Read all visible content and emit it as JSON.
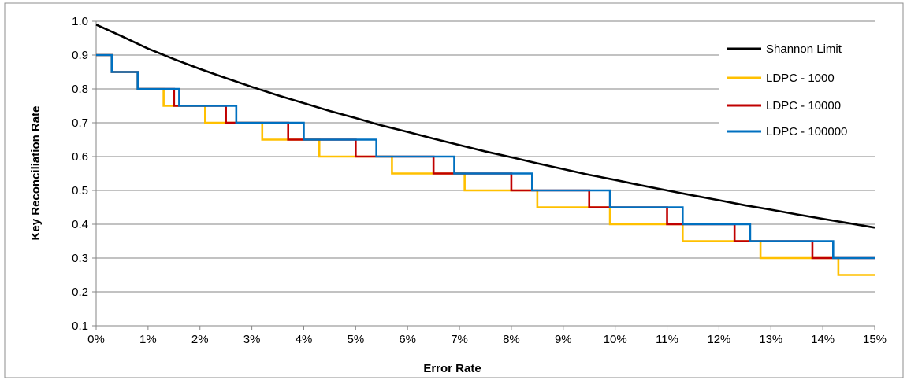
{
  "chart_data": {
    "type": "line",
    "xlabel": "Error Rate",
    "ylabel": "Key Reconciliation Rate",
    "xlim": [
      0,
      15
    ],
    "ylim": [
      0.1,
      1.0
    ],
    "x_ticks": [
      "0%",
      "1%",
      "2%",
      "3%",
      "4%",
      "5%",
      "6%",
      "7%",
      "8%",
      "9%",
      "10%",
      "11%",
      "12%",
      "13%",
      "14%",
      "15%"
    ],
    "y_ticks": [
      "0.1",
      "0.2",
      "0.3",
      "0.4",
      "0.5",
      "0.6",
      "0.7",
      "0.8",
      "0.9",
      "1.0"
    ],
    "grid": "horizontal",
    "legend_position": "top-right",
    "series": [
      {
        "name": "Shannon Limit",
        "color": "#000000",
        "step": false,
        "x": [
          0,
          0.5,
          1,
          1.5,
          2,
          2.5,
          3,
          3.5,
          4,
          4.5,
          5,
          5.5,
          6,
          6.5,
          7,
          7.5,
          8,
          8.5,
          9,
          9.5,
          10,
          10.5,
          11,
          11.5,
          12,
          12.5,
          13,
          13.5,
          14,
          14.5,
          15
        ],
        "y": [
          0.99,
          0.955,
          0.919,
          0.888,
          0.859,
          0.832,
          0.806,
          0.781,
          0.758,
          0.735,
          0.714,
          0.692,
          0.673,
          0.653,
          0.634,
          0.615,
          0.598,
          0.58,
          0.563,
          0.546,
          0.531,
          0.515,
          0.5,
          0.485,
          0.471,
          0.456,
          0.443,
          0.429,
          0.416,
          0.403,
          0.39
        ]
      },
      {
        "name": "LDPC - 1000",
        "color": "#FFC000",
        "step": true,
        "x": [
          0,
          0.3,
          0.8,
          1.3,
          2.1,
          3.2,
          4.3,
          5.7,
          7.1,
          8.5,
          9.9,
          11.3,
          12.8,
          14.3,
          15
        ],
        "y": [
          0.9,
          0.85,
          0.8,
          0.75,
          0.7,
          0.65,
          0.6,
          0.55,
          0.5,
          0.45,
          0.4,
          0.35,
          0.3,
          0.25,
          0.25
        ]
      },
      {
        "name": "LDPC - 10000",
        "color": "#C00000",
        "step": true,
        "x": [
          0,
          0.3,
          0.8,
          1.5,
          2.5,
          3.7,
          5.0,
          6.5,
          8.0,
          9.5,
          11.0,
          12.3,
          13.8,
          15
        ],
        "y": [
          0.9,
          0.85,
          0.8,
          0.75,
          0.7,
          0.65,
          0.6,
          0.55,
          0.5,
          0.45,
          0.4,
          0.35,
          0.3,
          0.3
        ]
      },
      {
        "name": "LDPC - 100000",
        "color": "#0070C0",
        "step": true,
        "x": [
          0,
          0.3,
          0.8,
          1.6,
          2.7,
          4.0,
          5.4,
          6.9,
          8.4,
          9.9,
          11.3,
          12.6,
          14.2,
          15
        ],
        "y": [
          0.9,
          0.85,
          0.8,
          0.75,
          0.7,
          0.65,
          0.6,
          0.55,
          0.5,
          0.45,
          0.4,
          0.35,
          0.3,
          0.3
        ]
      }
    ]
  }
}
